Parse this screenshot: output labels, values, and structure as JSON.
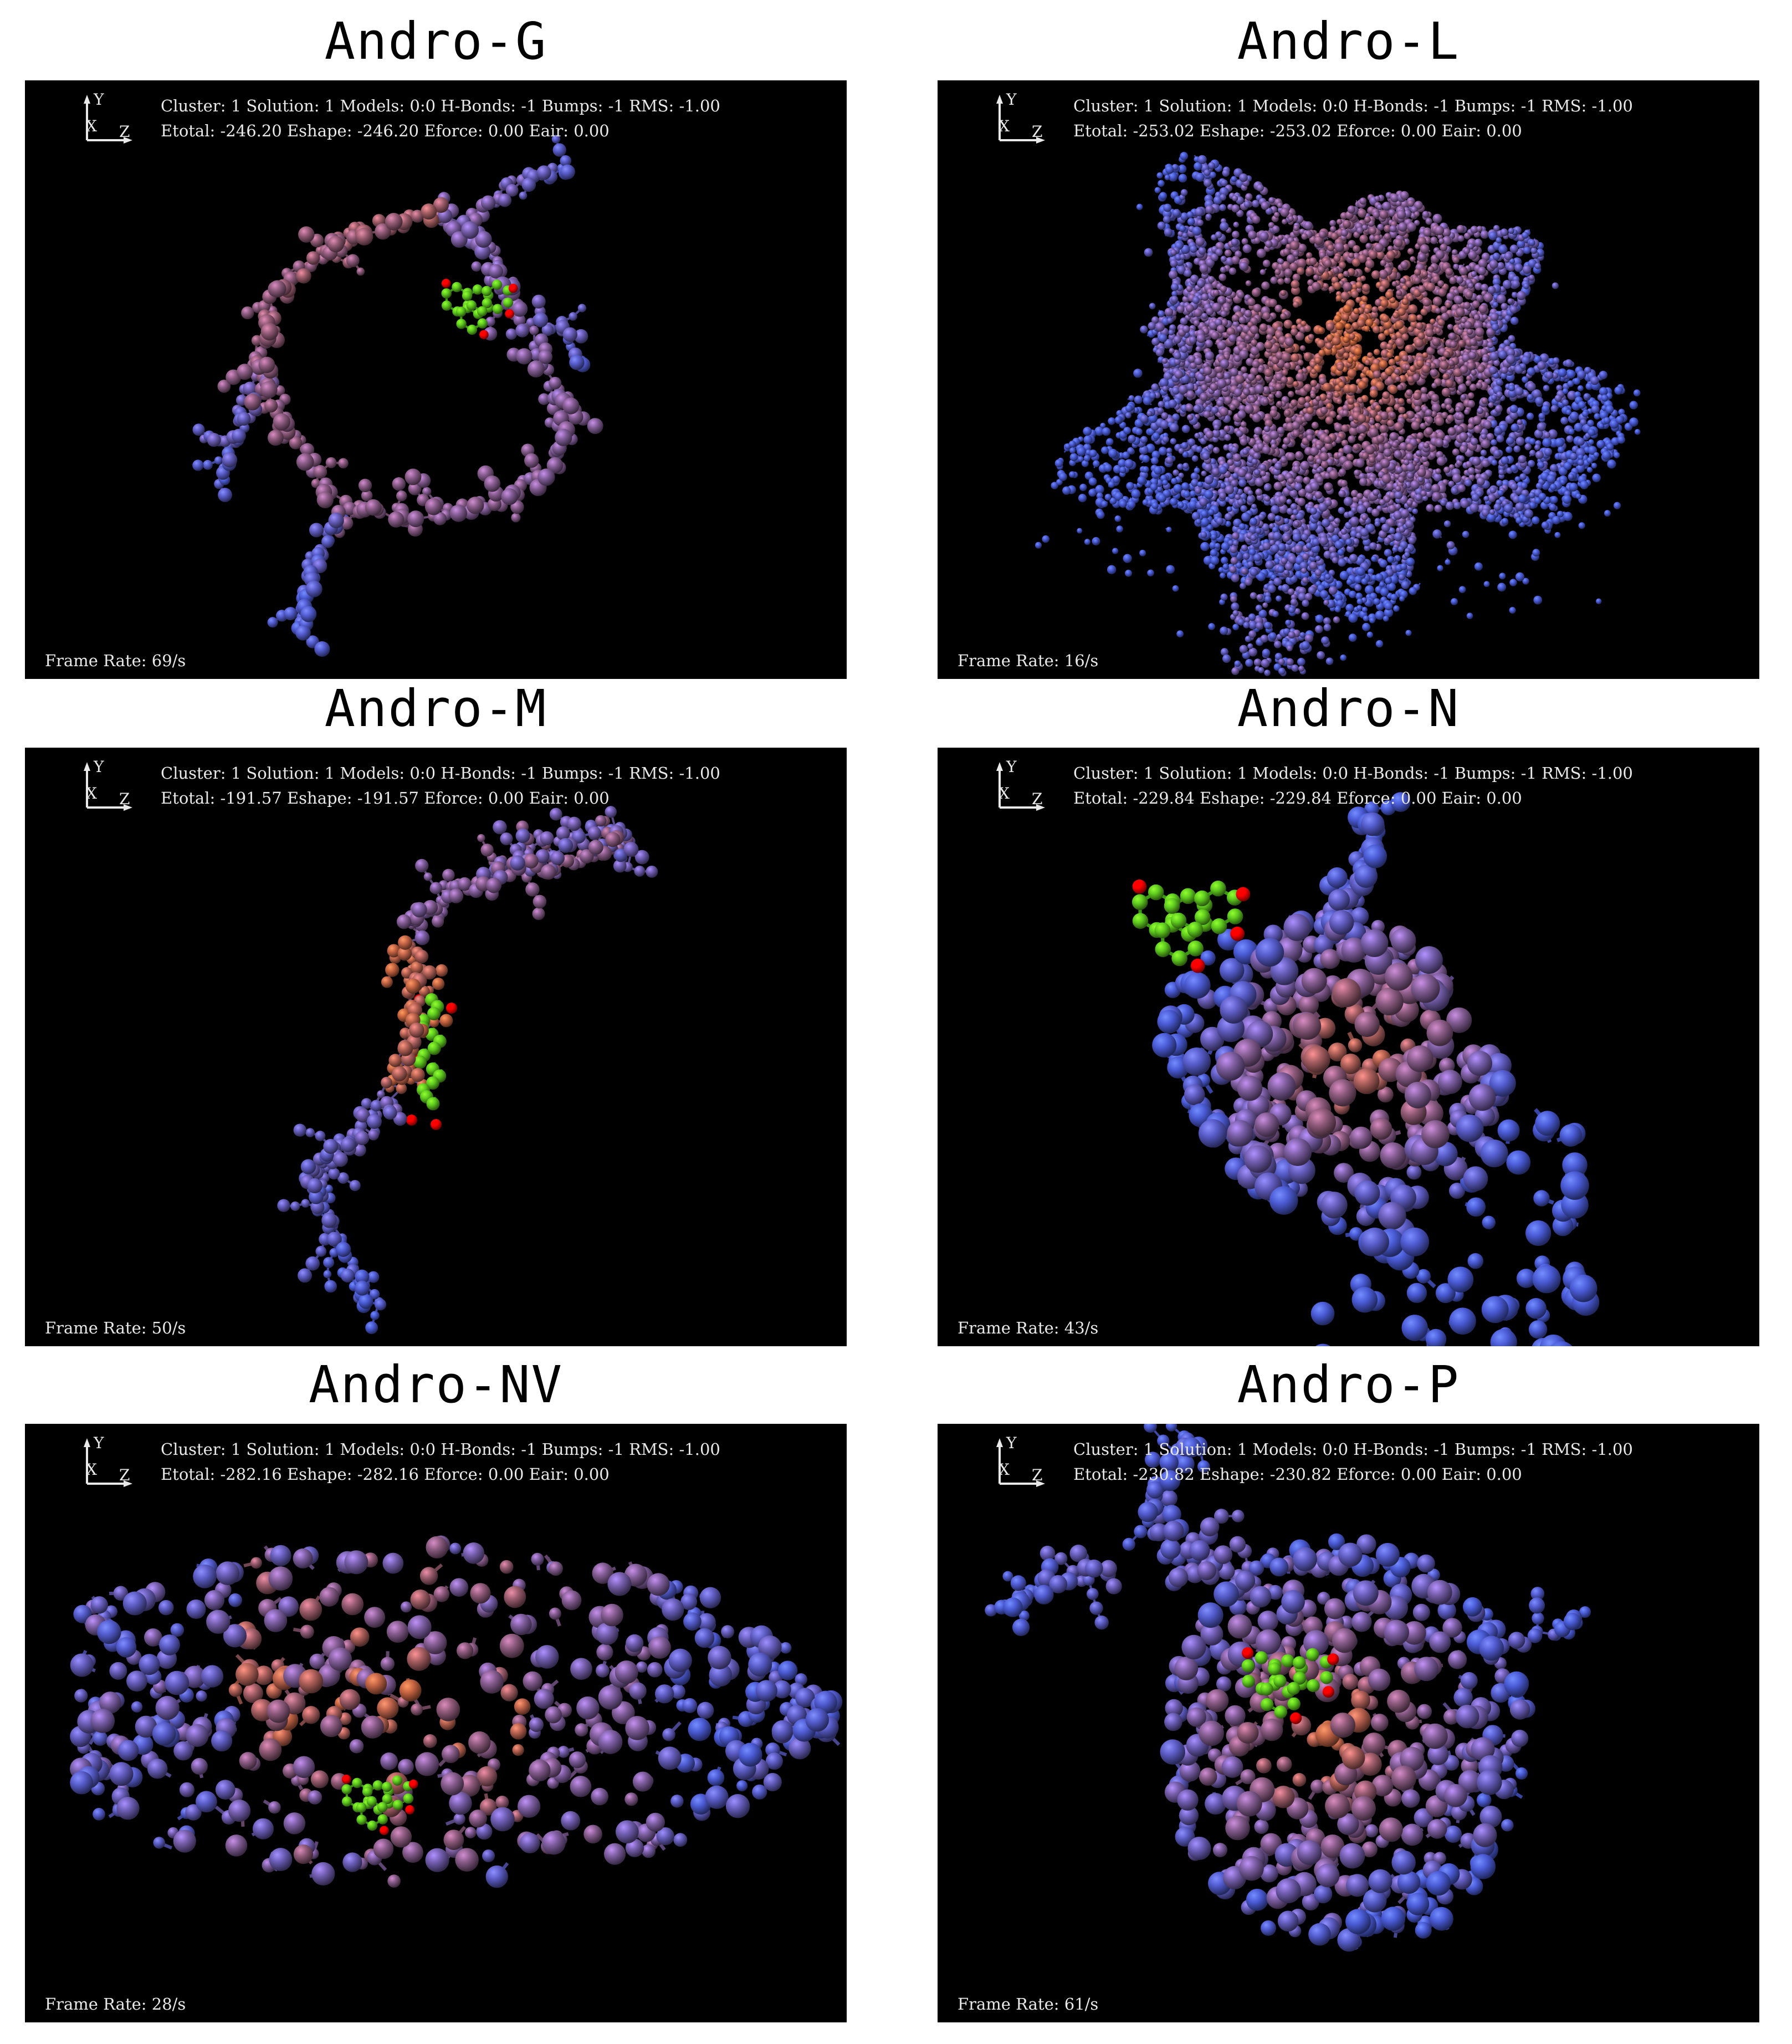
{
  "panels": [
    {
      "id": "g",
      "title": "Andro-G",
      "info_line1": "Cluster: 1 Solution: 1 Models: 0:0 H-Bonds: -1 Bumps: -1 RMS: -1.00",
      "info_line2": "Etotal: -246.20 Eshape: -246.20 Eforce: 0.00 Eair: 0.00",
      "frame_rate": "Frame Rate: 69/s",
      "axis_y": "Y",
      "axis_x": "X",
      "axis_z": "Z"
    },
    {
      "id": "l",
      "title": "Andro-L",
      "info_line1": "Cluster: 1 Solution: 1 Models: 0:0 H-Bonds: -1 Bumps: -1 RMS: -1.00",
      "info_line2": "Etotal: -253.02 Eshape: -253.02 Eforce: 0.00 Eair: 0.00",
      "frame_rate": "Frame Rate: 16/s",
      "axis_y": "Y",
      "axis_x": "X",
      "axis_z": "Z"
    },
    {
      "id": "m",
      "title": "Andro-M",
      "info_line1": "Cluster: 1 Solution: 1 Models: 0:0 H-Bonds: -1 Bumps: -1 RMS: -1.00",
      "info_line2": "Etotal: -191.57 Eshape: -191.57 Eforce: 0.00 Eair: 0.00",
      "frame_rate": "Frame Rate: 50/s",
      "axis_y": "Y",
      "axis_x": "X",
      "axis_z": "Z"
    },
    {
      "id": "n",
      "title": "Andro-N",
      "info_line1": "Cluster: 1 Solution: 1 Models: 0:0 H-Bonds: -1 Bumps: -1 RMS: -1.00",
      "info_line2": "Etotal: -229.84 Eshape: -229.84 Eforce: 0.00 Eair: 0.00",
      "frame_rate": "Frame Rate: 43/s",
      "axis_y": "Y",
      "axis_x": "X",
      "axis_z": "Z"
    },
    {
      "id": "nv",
      "title": "Andro-NV",
      "info_line1": "Cluster: 1 Solution: 1 Models: 0:0 H-Bonds: -1 Bumps: -1 RMS: -1.00",
      "info_line2": "Etotal: -282.16 Eshape: -282.16 Eforce: 0.00 Eair: 0.00",
      "frame_rate": "Frame Rate: 28/s",
      "axis_y": "Y",
      "axis_x": "X",
      "axis_z": "Z"
    },
    {
      "id": "p",
      "title": "Andro-P",
      "info_line1": "Cluster: 1 Solution: 1 Models: 0:0 H-Bonds: -1 Bumps: -1 RMS: -1.00",
      "info_line2": "Etotal: -230.82 Eshape: -230.82 Eforce: 0.00 Eair: 0.00",
      "frame_rate": "Frame Rate: 61/s",
      "axis_y": "Y",
      "axis_x": "X",
      "axis_z": "Z"
    }
  ],
  "colors": {
    "background": "#000000",
    "text": "#e9e9e9",
    "ligand_carbon": "#5fcb1f",
    "ligand_oxygen": "#ff0000",
    "protein_blue": "#4a5bd6",
    "protein_purple": "#7b5ea3",
    "protein_mauve": "#8e5a78",
    "protein_orange": "#c8643c"
  }
}
